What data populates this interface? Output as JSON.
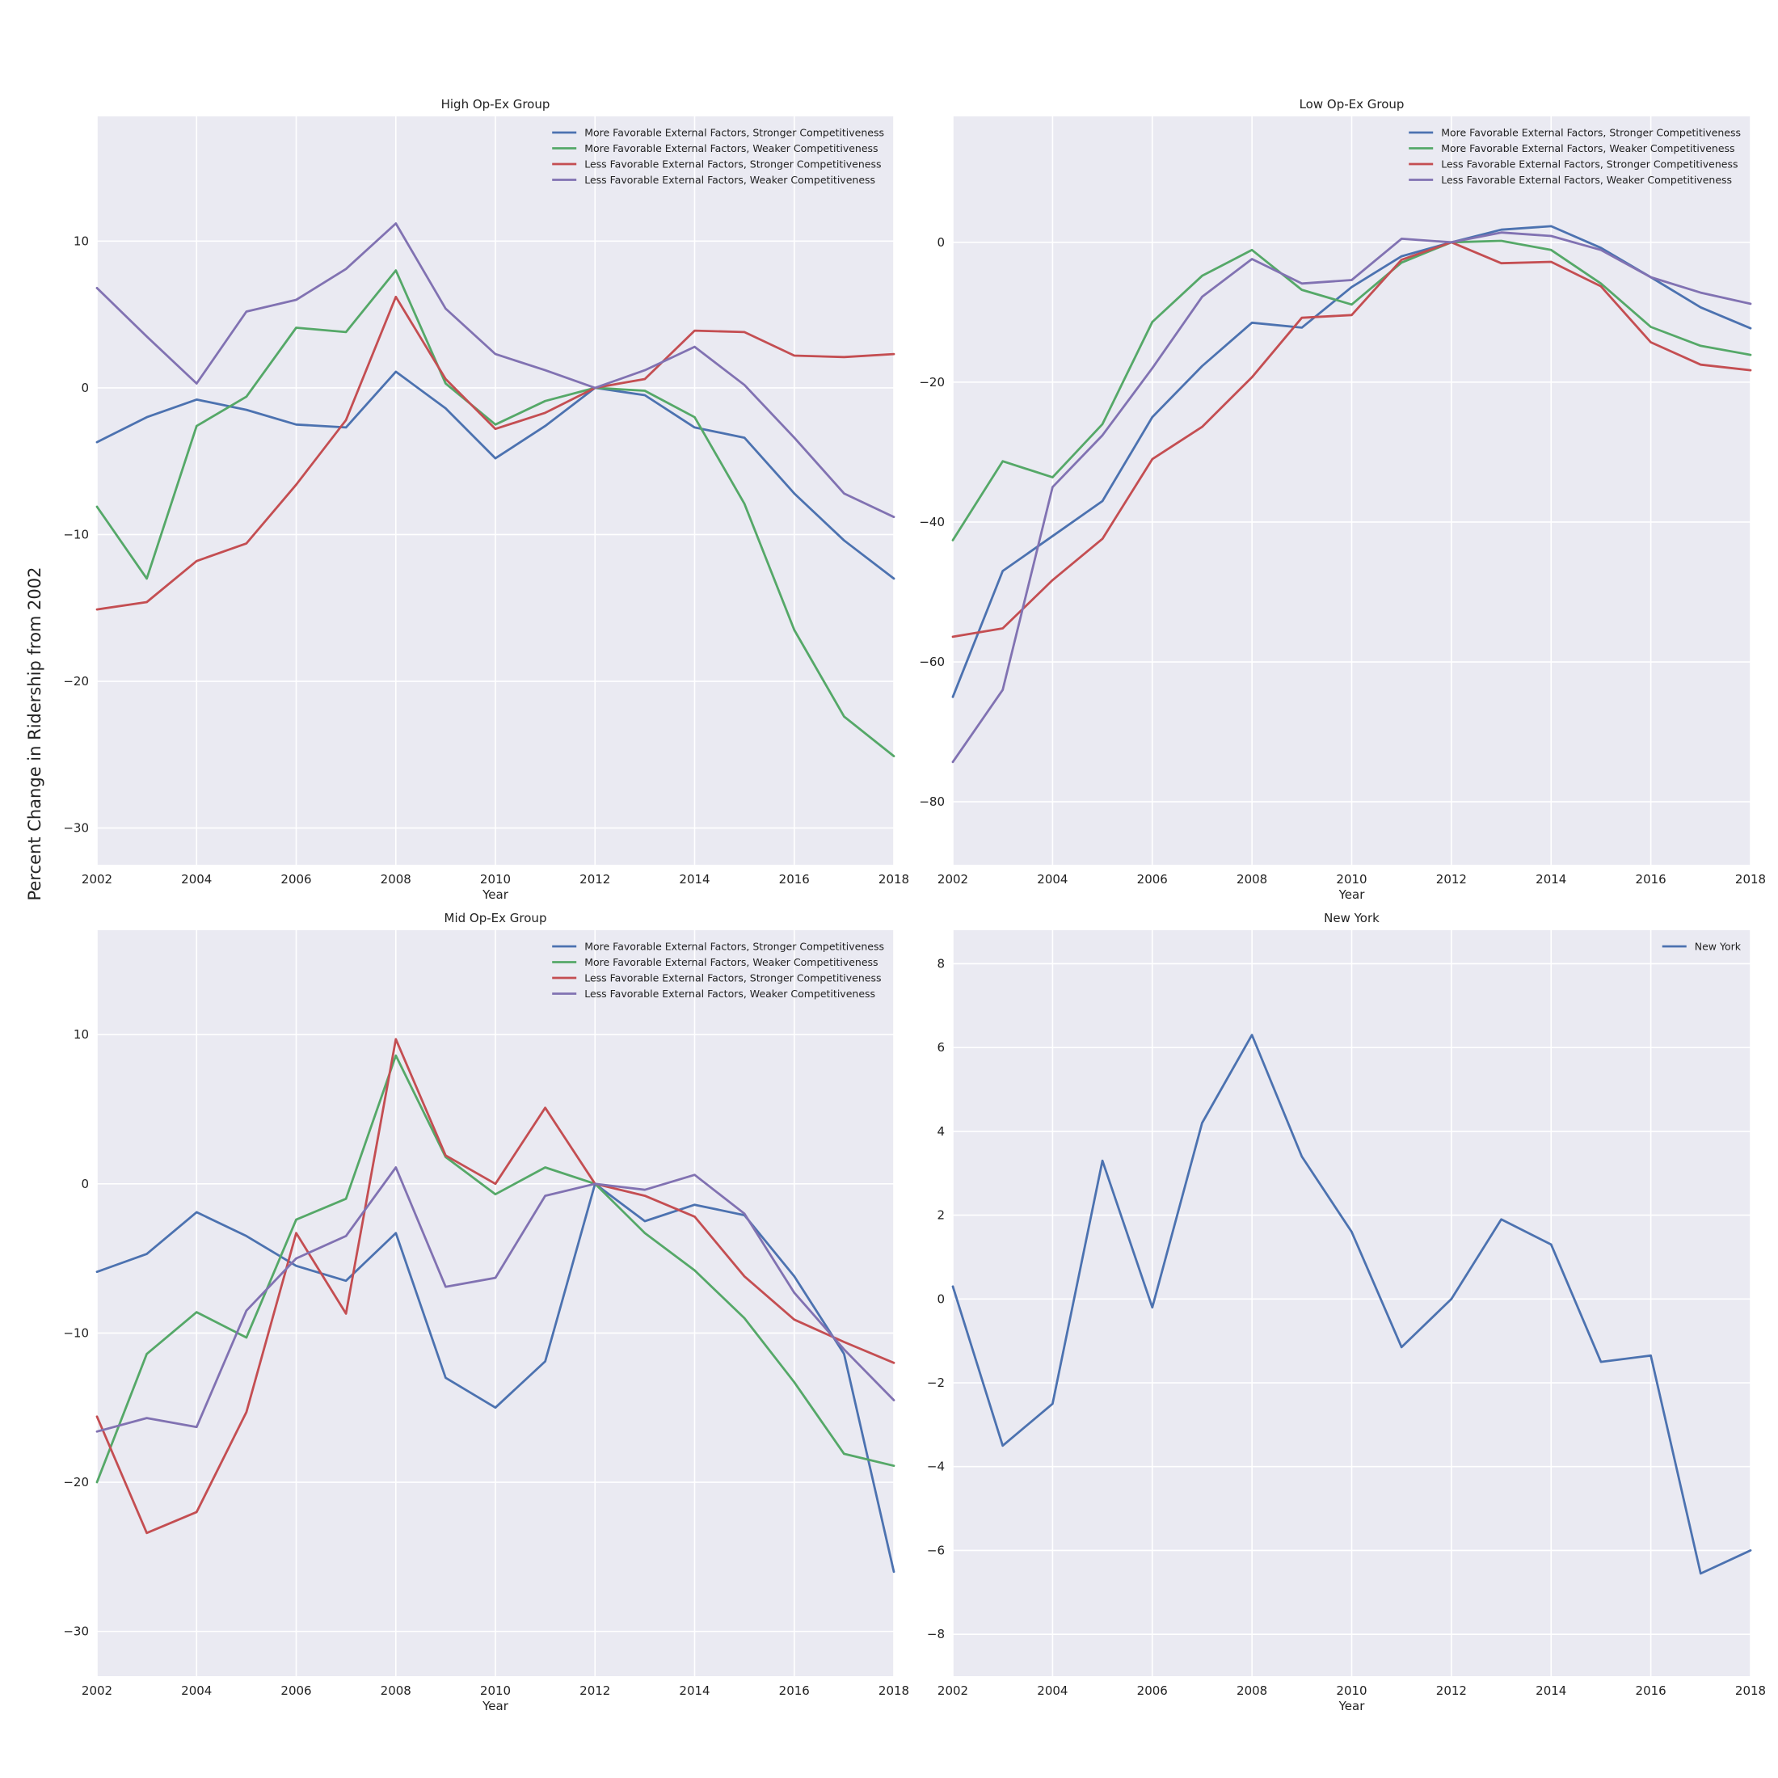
{
  "figure": {
    "ylabel": "Percent Change in Ridership from 2002"
  },
  "chart_data": [
    {
      "type": "line",
      "title": "High Op-Ex Group",
      "xlabel": "Year",
      "ylabel": "",
      "xlim": [
        2002,
        2018
      ],
      "ylim": [
        -32.5,
        18.5
      ],
      "xticks": [
        2002,
        2004,
        2006,
        2008,
        2010,
        2012,
        2014,
        2016,
        2018
      ],
      "yticks": [
        -30,
        -20,
        -10,
        0,
        10
      ],
      "grid": true,
      "legend": "top-right",
      "x": [
        2002,
        2003,
        2004,
        2005,
        2006,
        2007,
        2008,
        2009,
        2010,
        2011,
        2012,
        2013,
        2014,
        2015,
        2016,
        2017,
        2018
      ],
      "series": [
        {
          "name": "More Favorable External Factors, Stronger Competitiveness",
          "color": "#4c72b0",
          "values": [
            -3.7,
            -2.0,
            -0.8,
            -1.5,
            -2.5,
            -2.7,
            1.1,
            -1.4,
            -4.8,
            -2.6,
            0.0,
            -0.5,
            -2.7,
            -3.4,
            -7.2,
            -10.4,
            -13.0
          ]
        },
        {
          "name": "More Favorable External Factors, Weaker Competitiveness",
          "color": "#55a868",
          "values": [
            -8.1,
            -13.0,
            -2.6,
            -0.6,
            4.1,
            3.8,
            8.0,
            0.3,
            -2.5,
            -0.9,
            0.0,
            -0.2,
            -2.0,
            -7.9,
            -16.5,
            -22.4,
            -25.1
          ]
        },
        {
          "name": "Less Favorable External Factors, Stronger Competitiveness",
          "color": "#c44e52",
          "values": [
            -15.1,
            -14.6,
            -11.8,
            -10.6,
            -6.6,
            -2.2,
            6.2,
            0.6,
            -2.8,
            -1.7,
            0.0,
            0.6,
            3.9,
            3.8,
            2.2,
            2.1,
            2.3
          ]
        },
        {
          "name": "Less Favorable External Factors, Weaker Competitiveness",
          "color": "#8172b2",
          "values": [
            6.8,
            3.5,
            0.3,
            5.2,
            6.0,
            8.1,
            11.2,
            5.4,
            2.3,
            1.2,
            0.0,
            1.2,
            2.8,
            0.2,
            -3.4,
            -7.2,
            -8.8
          ]
        }
      ]
    },
    {
      "type": "line",
      "title": "Low Op-Ex Group",
      "xlabel": "Year",
      "ylabel": "",
      "xlim": [
        2002,
        2018
      ],
      "ylim": [
        -89,
        18
      ],
      "xticks": [
        2002,
        2004,
        2006,
        2008,
        2010,
        2012,
        2014,
        2016,
        2018
      ],
      "yticks": [
        -80,
        -60,
        -40,
        -20,
        0
      ],
      "grid": true,
      "legend": "top-right",
      "x": [
        2002,
        2003,
        2004,
        2005,
        2006,
        2007,
        2008,
        2009,
        2010,
        2011,
        2012,
        2013,
        2014,
        2015,
        2016,
        2017,
        2018
      ],
      "series": [
        {
          "name": "More Favorable External Factors, Stronger Competitiveness",
          "color": "#4c72b0",
          "values": [
            -65.0,
            -47.0,
            -42.0,
            -37.0,
            -25.0,
            -17.7,
            -11.5,
            -12.2,
            -6.4,
            -2.0,
            0.0,
            1.8,
            2.3,
            -0.8,
            -5.0,
            -9.3,
            -12.3
          ]
        },
        {
          "name": "More Favorable External Factors, Weaker Competitiveness",
          "color": "#55a868",
          "values": [
            -42.6,
            -31.3,
            -33.6,
            -26.0,
            -11.4,
            -4.8,
            -1.1,
            -6.8,
            -8.9,
            -2.9,
            0.0,
            0.2,
            -1.1,
            -5.9,
            -12.1,
            -14.8,
            -16.1
          ]
        },
        {
          "name": "Less Favorable External Factors, Stronger Competitiveness",
          "color": "#c44e52",
          "values": [
            -56.4,
            -55.2,
            -48.3,
            -42.4,
            -31.0,
            -26.4,
            -19.3,
            -10.8,
            -10.4,
            -2.5,
            0.0,
            -3.0,
            -2.8,
            -6.3,
            -14.3,
            -17.5,
            -18.3
          ]
        },
        {
          "name": "Less Favorable External Factors, Weaker Competitiveness",
          "color": "#8172b2",
          "values": [
            -74.3,
            -64.0,
            -35.0,
            -27.6,
            -18.0,
            -7.8,
            -2.4,
            -5.9,
            -5.4,
            0.5,
            0.0,
            1.4,
            0.9,
            -1.1,
            -5.0,
            -7.2,
            -8.8
          ]
        }
      ]
    },
    {
      "type": "line",
      "title": "Mid Op-Ex Group",
      "xlabel": "Year",
      "ylabel": "",
      "xlim": [
        2002,
        2018
      ],
      "ylim": [
        -33,
        17
      ],
      "xticks": [
        2002,
        2004,
        2006,
        2008,
        2010,
        2012,
        2014,
        2016,
        2018
      ],
      "yticks": [
        -30,
        -20,
        -10,
        0,
        10
      ],
      "grid": true,
      "legend": "top-right",
      "x": [
        2002,
        2003,
        2004,
        2005,
        2006,
        2007,
        2008,
        2009,
        2010,
        2011,
        2012,
        2013,
        2014,
        2015,
        2016,
        2017,
        2018
      ],
      "series": [
        {
          "name": "More Favorable External Factors, Stronger Competitiveness",
          "color": "#4c72b0",
          "values": [
            -5.9,
            -4.7,
            -1.9,
            -3.5,
            -5.5,
            -6.5,
            -3.3,
            -13.0,
            -15.0,
            -11.9,
            0.0,
            -2.5,
            -1.4,
            -2.1,
            -6.2,
            -11.4,
            -26.0
          ]
        },
        {
          "name": "More Favorable External Factors, Weaker Competitiveness",
          "color": "#55a868",
          "values": [
            -20.0,
            -11.4,
            -8.6,
            -10.3,
            -2.4,
            -1.0,
            8.6,
            1.8,
            -0.7,
            1.1,
            0.0,
            -3.3,
            -5.8,
            -9.0,
            -13.3,
            -18.1,
            -18.9
          ]
        },
        {
          "name": "Less Favorable External Factors, Stronger Competitiveness",
          "color": "#c44e52",
          "values": [
            -15.6,
            -23.4,
            -22.0,
            -15.3,
            -3.3,
            -8.7,
            9.7,
            1.9,
            0.0,
            5.1,
            0.0,
            -0.8,
            -2.2,
            -6.2,
            -9.1,
            -10.6,
            -12.0
          ]
        },
        {
          "name": "Less Favorable External Factors, Weaker Competitiveness",
          "color": "#8172b2",
          "values": [
            -16.6,
            -15.7,
            -16.3,
            -8.5,
            -5.0,
            -3.5,
            1.1,
            -6.9,
            -6.3,
            -0.8,
            0.0,
            -0.4,
            0.6,
            -2.0,
            -7.3,
            -11.1,
            -14.5
          ]
        }
      ]
    },
    {
      "type": "line",
      "title": "New York",
      "xlabel": "Year",
      "ylabel": "",
      "xlim": [
        2002,
        2018
      ],
      "ylim": [
        -9,
        8.8
      ],
      "xticks": [
        2002,
        2004,
        2006,
        2008,
        2010,
        2012,
        2014,
        2016,
        2018
      ],
      "yticks": [
        -8,
        -6,
        -4,
        -2,
        0,
        2,
        4,
        6,
        8
      ],
      "grid": true,
      "legend": "top-right",
      "x": [
        2002,
        2003,
        2004,
        2005,
        2006,
        2007,
        2008,
        2009,
        2010,
        2011,
        2012,
        2013,
        2014,
        2015,
        2016,
        2017,
        2018
      ],
      "series": [
        {
          "name": "New York",
          "color": "#4c72b0",
          "values": [
            0.3,
            -3.5,
            -2.5,
            3.3,
            -0.2,
            4.2,
            6.3,
            3.4,
            1.6,
            -1.15,
            0.0,
            1.9,
            1.3,
            -1.5,
            -1.35,
            -6.55,
            -6.0
          ]
        }
      ]
    }
  ]
}
